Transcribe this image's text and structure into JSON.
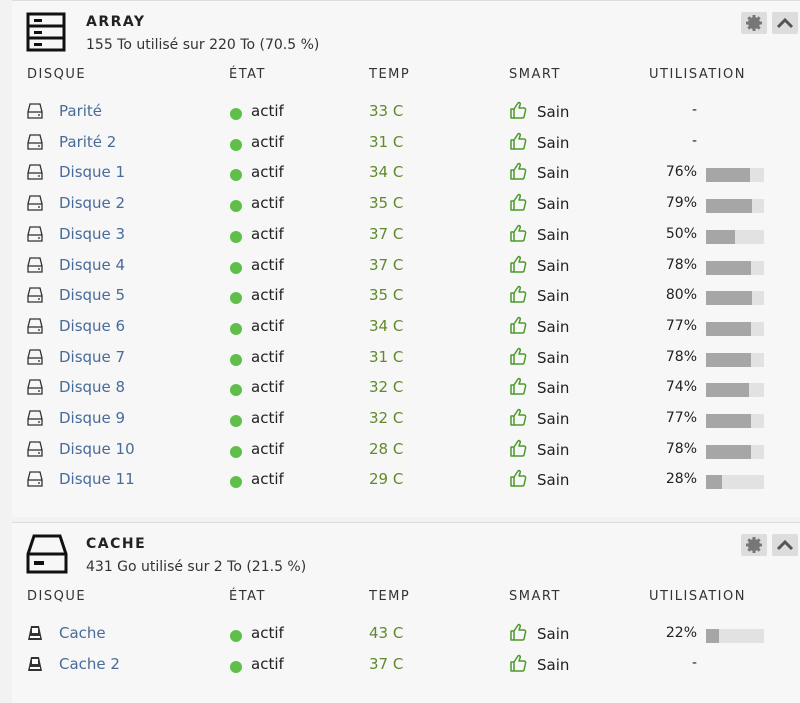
{
  "array": {
    "title": "ARRAY",
    "summary": "155 To utilisé sur 220 To (70.5 %)",
    "columns": [
      "DISQUE",
      "ÉTAT",
      "TEMP",
      "SMART",
      "UTILISATION"
    ],
    "disks": [
      {
        "name": "Parité",
        "state": "actif",
        "temp": "33 C",
        "smart": "Sain",
        "usage": "-"
      },
      {
        "name": "Parité 2",
        "state": "actif",
        "temp": "31 C",
        "smart": "Sain",
        "usage": "-"
      },
      {
        "name": "Disque 1",
        "state": "actif",
        "temp": "34 C",
        "smart": "Sain",
        "usage": {
          "value": 76,
          "label": "76%"
        }
      },
      {
        "name": "Disque 2",
        "state": "actif",
        "temp": "35 C",
        "smart": "Sain",
        "usage": {
          "value": 79,
          "label": "79%"
        }
      },
      {
        "name": "Disque 3",
        "state": "actif",
        "temp": "37 C",
        "smart": "Sain",
        "usage": {
          "value": 50,
          "label": "50%"
        }
      },
      {
        "name": "Disque 4",
        "state": "actif",
        "temp": "37 C",
        "smart": "Sain",
        "usage": {
          "value": 78,
          "label": "78%"
        }
      },
      {
        "name": "Disque 5",
        "state": "actif",
        "temp": "35 C",
        "smart": "Sain",
        "usage": {
          "value": 80,
          "label": "80%"
        }
      },
      {
        "name": "Disque 6",
        "state": "actif",
        "temp": "34 C",
        "smart": "Sain",
        "usage": {
          "value": 77,
          "label": "77%"
        }
      },
      {
        "name": "Disque 7",
        "state": "actif",
        "temp": "31 C",
        "smart": "Sain",
        "usage": {
          "value": 78,
          "label": "78%"
        }
      },
      {
        "name": "Disque 8",
        "state": "actif",
        "temp": "32 C",
        "smart": "Sain",
        "usage": {
          "value": 74,
          "label": "74%"
        }
      },
      {
        "name": "Disque 9",
        "state": "actif",
        "temp": "32 C",
        "smart": "Sain",
        "usage": {
          "value": 77,
          "label": "77%"
        }
      },
      {
        "name": "Disque 10",
        "state": "actif",
        "temp": "28 C",
        "smart": "Sain",
        "usage": {
          "value": 78,
          "label": "78%"
        }
      },
      {
        "name": "Disque 11",
        "state": "actif",
        "temp": "29 C",
        "smart": "Sain",
        "usage": {
          "value": 28,
          "label": "28%"
        }
      }
    ]
  },
  "cache": {
    "title": "CACHE",
    "summary": "431 Go utilisé sur 2 To (21.5 %)",
    "columns": [
      "DISQUE",
      "ÉTAT",
      "TEMP",
      "SMART",
      "UTILISATION"
    ],
    "disks": [
      {
        "name": "Cache",
        "state": "actif",
        "temp": "43 C",
        "smart": "Sain",
        "usage": {
          "value": 22,
          "label": "22%"
        }
      },
      {
        "name": "Cache 2",
        "state": "actif",
        "temp": "37 C",
        "smart": "Sain",
        "usage": "-"
      }
    ]
  }
}
